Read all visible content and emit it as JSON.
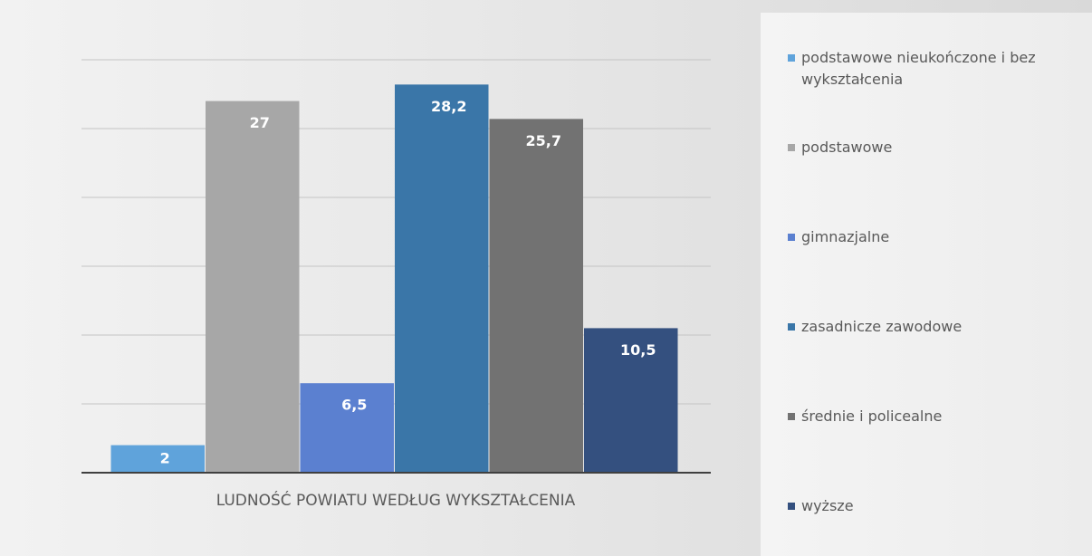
{
  "chart_data": {
    "type": "bar",
    "xlabel": "LUDNOŚĆ POWIATU WEDŁUG WYKSZTAŁCENIA",
    "series": [
      {
        "name": "podstawowe nieukończone i bez wykształcenia",
        "color": "#5fa3db",
        "values": [
          2
        ],
        "value_labels": [
          "2"
        ]
      },
      {
        "name": "podstawowe",
        "color": "#a7a7a7",
        "values": [
          27
        ],
        "value_labels": [
          "27"
        ]
      },
      {
        "name": "gimnazjalne",
        "color": "#5b80d0",
        "values": [
          6.5
        ],
        "value_labels": [
          "6,5"
        ]
      },
      {
        "name": "zasadnicze zawodowe",
        "color": "#3a76a8",
        "values": [
          28.2
        ],
        "value_labels": [
          "28,2"
        ]
      },
      {
        "name": "średnie i policealne",
        "color": "#727272",
        "values": [
          25.7
        ],
        "value_labels": [
          "25,7"
        ]
      },
      {
        "name": "wyższe",
        "color": "#34507f",
        "values": [
          10.5
        ],
        "value_labels": [
          "10,5"
        ]
      }
    ],
    "ylim": [
      0,
      30
    ],
    "yticks": [
      0,
      5,
      10,
      15,
      20,
      25,
      30
    ],
    "grid": true,
    "legend": "right"
  }
}
